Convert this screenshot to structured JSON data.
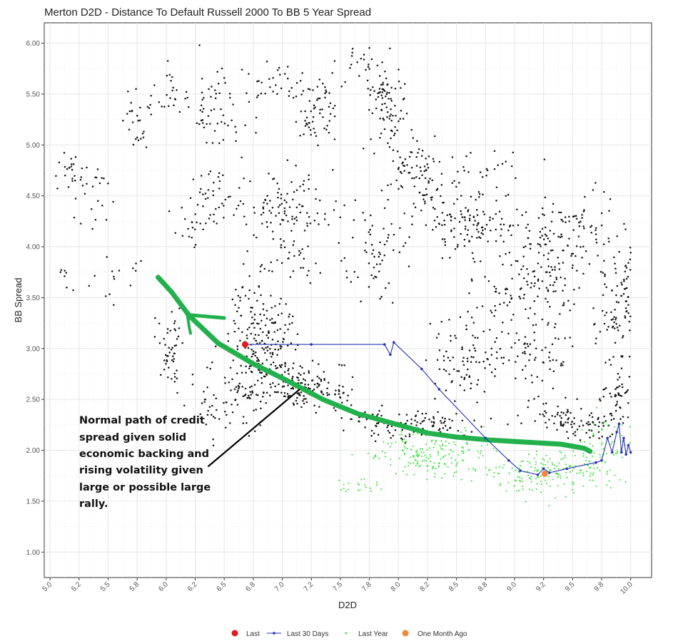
{
  "chart_data": {
    "type": "scatter",
    "title": "Merton D2D - Distance To Default Russell 2000 To BB 5 Year Spread",
    "xlabel": "D2D",
    "ylabel": "BB Spread",
    "xlim": [
      4.95,
      10.18
    ],
    "ylim": [
      0.75,
      6.2
    ],
    "grid": true,
    "legend_placement": "bottom",
    "x_ticks": [
      "5.0",
      "5.2",
      "5.5",
      "5.8",
      "6.0",
      "6.2",
      "6.5",
      "6.8",
      "7.0",
      "7.2",
      "7.5",
      "7.8",
      "8.0",
      "8.2",
      "8.5",
      "8.8",
      "9.0",
      "9.2",
      "9.5",
      "9.8",
      "10.0"
    ],
    "x_tick_values": [
      5.0,
      5.25,
      5.5,
      5.75,
      6.0,
      6.25,
      6.5,
      6.75,
      7.0,
      7.25,
      7.5,
      7.75,
      8.0,
      8.25,
      8.5,
      8.75,
      9.0,
      9.25,
      9.5,
      9.75,
      10.0
    ],
    "y_ticks": [
      "1.00",
      "1.50",
      "2.00",
      "2.50",
      "3.00",
      "3.50",
      "4.00",
      "4.50",
      "5.00",
      "5.50",
      "6.00"
    ],
    "y_tick_values": [
      1.0,
      1.5,
      2.0,
      2.5,
      3.0,
      3.5,
      4.0,
      4.5,
      5.0,
      5.5,
      6.0
    ],
    "series": [
      {
        "name": "Last",
        "color": "#e41a1c",
        "kind": "point",
        "points": [
          [
            6.68,
            3.04
          ]
        ]
      },
      {
        "name": "Last 30 Days",
        "color": "#2633b5",
        "kind": "line-points",
        "points": [
          [
            6.68,
            3.04
          ],
          [
            7.25,
            3.04
          ],
          [
            7.88,
            3.04
          ],
          [
            7.93,
            2.94
          ],
          [
            7.96,
            3.06
          ],
          [
            8.2,
            2.8
          ],
          [
            8.35,
            2.6
          ],
          [
            8.75,
            2.12
          ],
          [
            8.95,
            1.9
          ],
          [
            9.05,
            1.8
          ],
          [
            9.2,
            1.76
          ],
          [
            9.25,
            1.82
          ],
          [
            9.3,
            1.78
          ],
          [
            9.45,
            1.82
          ],
          [
            9.7,
            1.88
          ],
          [
            9.75,
            1.9
          ],
          [
            9.8,
            2.12
          ],
          [
            9.84,
            1.98
          ],
          [
            9.88,
            2.18
          ],
          [
            9.9,
            2.26
          ],
          [
            9.92,
            1.98
          ],
          [
            9.94,
            2.12
          ],
          [
            9.96,
            1.96
          ],
          [
            9.98,
            2.05
          ],
          [
            10.0,
            1.98
          ]
        ]
      },
      {
        "name": "Last Year",
        "color": "#33e633",
        "kind": "cloud",
        "clusters": [
          {
            "cx": 8.3,
            "cy": 1.95,
            "sx": 0.35,
            "sy": 0.15,
            "n": 180
          },
          {
            "cx": 9.3,
            "cy": 1.78,
            "sx": 0.35,
            "sy": 0.15,
            "n": 170
          },
          {
            "cx": 9.8,
            "cy": 2.05,
            "sx": 0.18,
            "sy": 0.25,
            "n": 60
          },
          {
            "cx": 7.7,
            "cy": 1.65,
            "sx": 0.15,
            "sy": 0.05,
            "n": 20
          }
        ]
      },
      {
        "name": "One Month Ago",
        "color": "#ef8a3a",
        "kind": "point",
        "points": [
          [
            9.26,
            1.77
          ]
        ]
      }
    ],
    "historical": {
      "color": "#111111",
      "clusters": [
        {
          "cx": 5.15,
          "cy": 4.75,
          "sx": 0.08,
          "sy": 0.15,
          "n": 20
        },
        {
          "cx": 5.35,
          "cy": 4.5,
          "sx": 0.12,
          "sy": 0.25,
          "n": 25
        },
        {
          "cx": 5.1,
          "cy": 3.7,
          "sx": 0.1,
          "sy": 0.1,
          "n": 8
        },
        {
          "cx": 5.8,
          "cy": 5.2,
          "sx": 0.15,
          "sy": 0.2,
          "n": 25
        },
        {
          "cx": 6.05,
          "cy": 5.5,
          "sx": 0.12,
          "sy": 0.25,
          "n": 25
        },
        {
          "cx": 6.5,
          "cy": 5.35,
          "sx": 0.2,
          "sy": 0.25,
          "n": 60
        },
        {
          "cx": 6.4,
          "cy": 4.4,
          "sx": 0.2,
          "sy": 0.2,
          "n": 45
        },
        {
          "cx": 7.0,
          "cy": 5.6,
          "sx": 0.2,
          "sy": 0.15,
          "n": 30
        },
        {
          "cx": 7.3,
          "cy": 5.35,
          "sx": 0.12,
          "sy": 0.25,
          "n": 60
        },
        {
          "cx": 7.05,
          "cy": 4.4,
          "sx": 0.25,
          "sy": 0.25,
          "n": 100
        },
        {
          "cx": 7.65,
          "cy": 5.85,
          "sx": 0.1,
          "sy": 0.1,
          "n": 15
        },
        {
          "cx": 7.9,
          "cy": 5.4,
          "sx": 0.15,
          "sy": 0.3,
          "n": 90
        },
        {
          "cx": 8.15,
          "cy": 4.7,
          "sx": 0.2,
          "sy": 0.3,
          "n": 90
        },
        {
          "cx": 7.8,
          "cy": 3.9,
          "sx": 0.2,
          "sy": 0.3,
          "n": 60
        },
        {
          "cx": 8.6,
          "cy": 4.2,
          "sx": 0.25,
          "sy": 0.25,
          "n": 110
        },
        {
          "cx": 8.7,
          "cy": 4.8,
          "sx": 0.3,
          "sy": 0.2,
          "n": 25
        },
        {
          "cx": 9.25,
          "cy": 4.0,
          "sx": 0.3,
          "sy": 0.3,
          "n": 120
        },
        {
          "cx": 9.2,
          "cy": 3.55,
          "sx": 0.3,
          "sy": 0.2,
          "n": 60
        },
        {
          "cx": 9.9,
          "cy": 3.5,
          "sx": 0.15,
          "sy": 0.45,
          "n": 130
        },
        {
          "cx": 9.6,
          "cy": 4.3,
          "sx": 0.2,
          "sy": 0.2,
          "n": 25
        },
        {
          "cx": 8.6,
          "cy": 2.9,
          "sx": 0.2,
          "sy": 0.3,
          "n": 90
        },
        {
          "cx": 9.2,
          "cy": 2.9,
          "sx": 0.2,
          "sy": 0.25,
          "n": 50
        },
        {
          "cx": 9.5,
          "cy": 2.3,
          "sx": 0.3,
          "sy": 0.15,
          "n": 100
        },
        {
          "cx": 8.3,
          "cy": 2.25,
          "sx": 0.25,
          "sy": 0.1,
          "n": 70
        },
        {
          "cx": 7.8,
          "cy": 2.3,
          "sx": 0.25,
          "sy": 0.15,
          "n": 60
        },
        {
          "cx": 6.85,
          "cy": 3.05,
          "sx": 0.2,
          "sy": 0.3,
          "n": 160
        },
        {
          "cx": 7.1,
          "cy": 2.65,
          "sx": 0.2,
          "sy": 0.15,
          "n": 100
        },
        {
          "cx": 6.55,
          "cy": 2.5,
          "sx": 0.25,
          "sy": 0.25,
          "n": 90
        },
        {
          "cx": 6.05,
          "cy": 3.0,
          "sx": 0.1,
          "sy": 0.3,
          "n": 50
        },
        {
          "cx": 6.7,
          "cy": 3.5,
          "sx": 0.1,
          "sy": 0.25,
          "n": 30
        },
        {
          "cx": 7.1,
          "cy": 3.95,
          "sx": 0.2,
          "sy": 0.2,
          "n": 30
        },
        {
          "cx": 6.2,
          "cy": 4.2,
          "sx": 0.1,
          "sy": 0.15,
          "n": 15
        },
        {
          "cx": 5.55,
          "cy": 3.7,
          "sx": 0.15,
          "sy": 0.15,
          "n": 15
        },
        {
          "cx": 7.4,
          "cy": 2.6,
          "sx": 0.15,
          "sy": 0.15,
          "n": 40
        },
        {
          "cx": 9.9,
          "cy": 2.5,
          "sx": 0.1,
          "sy": 0.2,
          "n": 40
        },
        {
          "cx": 9.0,
          "cy": 3.3,
          "sx": 0.3,
          "sy": 0.3,
          "n": 40
        }
      ]
    },
    "annotation_curve": {
      "color": "#22b14c",
      "points": [
        [
          5.93,
          3.7
        ],
        [
          6.05,
          3.55
        ],
        [
          6.2,
          3.32
        ],
        [
          6.45,
          3.05
        ],
        [
          6.75,
          2.85
        ],
        [
          7.05,
          2.68
        ],
        [
          7.35,
          2.5
        ],
        [
          7.65,
          2.36
        ],
        [
          8.0,
          2.25
        ],
        [
          8.25,
          2.17
        ],
        [
          8.5,
          2.13
        ],
        [
          8.8,
          2.1
        ],
        [
          9.1,
          2.08
        ],
        [
          9.4,
          2.06
        ],
        [
          9.6,
          2.02
        ],
        [
          9.65,
          1.99
        ]
      ],
      "branch": [
        [
          6.2,
          3.33
        ],
        [
          6.3,
          3.32
        ],
        [
          6.5,
          3.3
        ]
      ],
      "drop": [
        [
          6.18,
          3.35
        ],
        [
          6.2,
          3.2
        ],
        [
          6.21,
          3.15
        ]
      ]
    },
    "annotation_arrow": {
      "from": [
        6.36,
        1.84
      ],
      "to": [
        7.15,
        2.6
      ]
    }
  },
  "annotation": {
    "lines": [
      "Normal path of credit",
      "spread given solid",
      "economic backing and",
      "rising volatility given",
      "large or possible large",
      "rally."
    ]
  },
  "legend": {
    "last": "Last",
    "last30": "Last 30 Days",
    "lastYear": "Last Year",
    "oneMonthAgo": "One Month Ago"
  }
}
